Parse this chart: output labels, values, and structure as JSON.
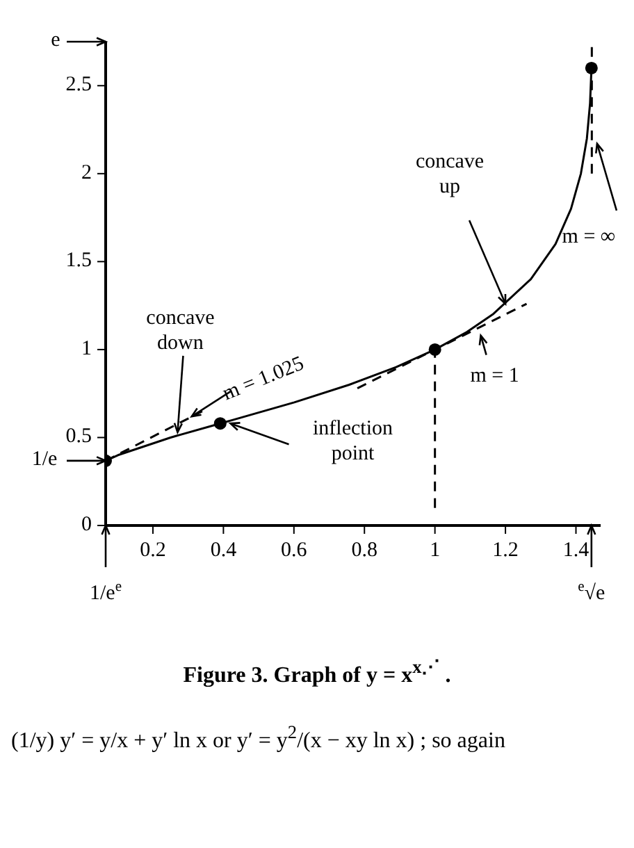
{
  "chart_data": {
    "type": "line",
    "title": "Figure 3. Graph of   y = x$^{x⋰}$ .",
    "xlim": [
      0.065988,
      1.47
    ],
    "ylim": [
      0,
      2.75
    ],
    "xticks": [
      0.2,
      0.4,
      0.6,
      0.8,
      1,
      1.2,
      1.4
    ],
    "yticks": [
      0,
      0.5,
      1,
      1.5,
      2,
      2.5
    ],
    "grid": false,
    "legend": false,
    "series": [
      {
        "color": "#000000",
        "line_style": "solid",
        "marker": "none",
        "x": [
          0.066,
          0.101,
          0.25,
          0.391,
          0.427,
          0.601,
          0.757,
          0.89,
          1,
          1.091,
          1.164,
          1.272,
          1.342,
          1.386,
          1.414,
          1.431,
          1.44,
          1.444
        ],
        "values": [
          0.368,
          0.4,
          0.5,
          0.58,
          0.6,
          0.7,
          0.8,
          0.9,
          1,
          1.1,
          1.2,
          1.4,
          1.6,
          1.8,
          2.0,
          2.2,
          2.4,
          2.6
        ]
      },
      {
        "color": "#000000",
        "line_style": "dashed",
        "marker": "none",
        "x": [
          0.066,
          0.34
        ],
        "values": [
          0.368,
          0.649
        ]
      },
      {
        "color": "#000000",
        "line_style": "dashed",
        "marker": "none",
        "x": [
          0.78,
          1.26
        ],
        "values": [
          0.78,
          1.26
        ]
      },
      {
        "color": "#000000",
        "line_style": "dashed",
        "marker": "none",
        "x": [
          1,
          1
        ],
        "values": [
          0.1,
          1
        ]
      },
      {
        "color": "#000000",
        "line_style": "dashed",
        "marker": "none",
        "x": [
          1.445,
          1.445
        ],
        "values": [
          2.0,
          2.75
        ]
      },
      {
        "type": "scatter",
        "color": "#000000",
        "marker": "circle",
        "x": [
          0.066,
          0.391,
          1,
          1.444
        ],
        "values": [
          0.368,
          0.58,
          1,
          2.6
        ]
      }
    ],
    "annotations": [
      {
        "text": "concave down",
        "x": 0.27,
        "y": 0.53
      },
      {
        "text": "m = 1.025",
        "x": 0.31,
        "y": 0.62
      },
      {
        "text": "inflection point",
        "x": 0.42,
        "y": 0.58
      },
      {
        "text": "concave up",
        "x": 1.2,
        "y": 1.26
      },
      {
        "text": "m = 1",
        "x": 1.13,
        "y": 1.08
      },
      {
        "text": "m = ∞",
        "x": 1.46,
        "y": 2.17
      },
      "e",
      {
        "text": "1/e",
        "x": 0.065988,
        "y": 0.368
      },
      "1/e$^{e}$",
      "$^{e}$√e",
      "(1/y) y′ = y/x + y′ ln x   or   y′ = y$^{2}$/(x − xy ln x) ; so again"
    ]
  }
}
